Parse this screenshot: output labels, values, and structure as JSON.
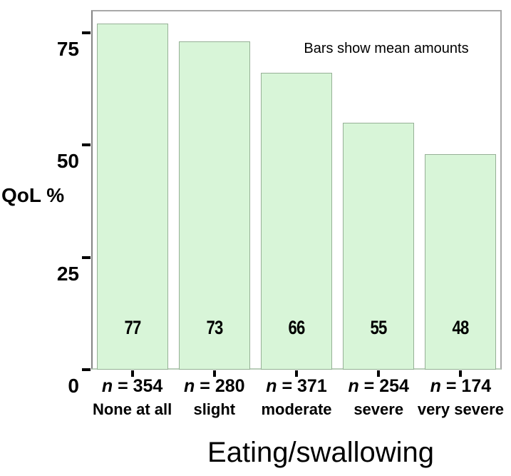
{
  "chart_data": {
    "type": "bar",
    "title": "",
    "annotation": "Bars show mean amounts",
    "ylabel": "QoL %",
    "xlabel": "Eating/swallowing",
    "categories": [
      "None at all",
      "slight",
      "moderate",
      "severe",
      "very severe"
    ],
    "values": [
      77,
      73,
      66,
      55,
      48
    ],
    "n_symbol": "n",
    "n_values": [
      354,
      280,
      371,
      254,
      174
    ],
    "y_ticks": [
      0,
      25,
      50,
      75
    ],
    "ylim": [
      0,
      80
    ],
    "grid": false,
    "legend": "none",
    "bars_show": "mean amounts",
    "colors": {
      "bar_fill": "#d8f5d8",
      "bar_border": "#96b096",
      "frame": "#a8a8a8",
      "axis": "#848484",
      "tick": "#000000",
      "text": "#000000",
      "background": "#ffffff"
    }
  }
}
